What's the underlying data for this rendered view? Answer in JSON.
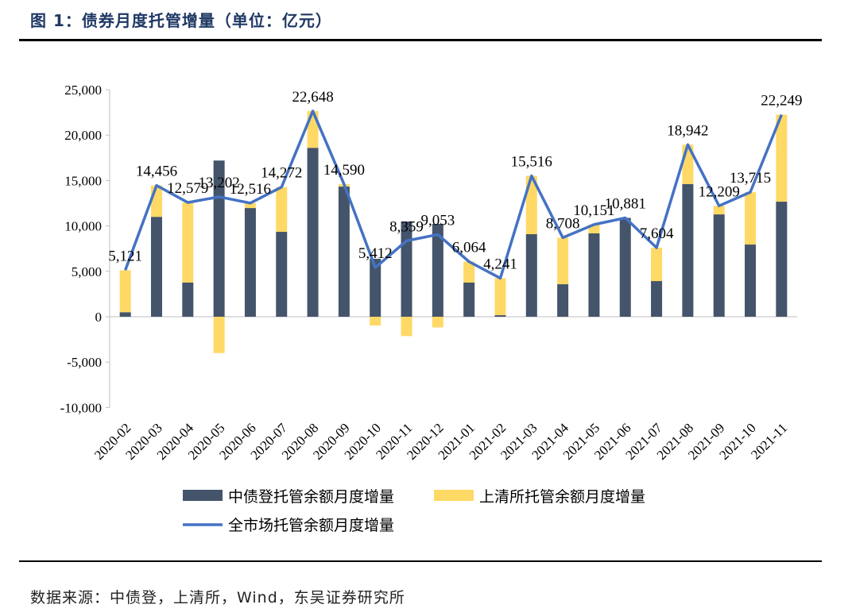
{
  "title": "图 1：债券月度托管增量（单位：亿元）",
  "source": "数据来源：中债登，上清所，Wind，东吴证券研究所",
  "chart_data": {
    "type": "bar",
    "stacked": true,
    "categories": [
      "2020-02",
      "2020-03",
      "2020-04",
      "2020-05",
      "2020-06",
      "2020-07",
      "2020-08",
      "2020-09",
      "2020-10",
      "2020-11",
      "2020-12",
      "2021-01",
      "2021-02",
      "2021-03",
      "2021-04",
      "2021-05",
      "2021-06",
      "2021-07",
      "2021-08",
      "2021-09",
      "2021-10",
      "2021-11"
    ],
    "ylim": [
      -10000,
      25000
    ],
    "yticks": [
      -10000,
      -5000,
      0,
      5000,
      10000,
      15000,
      20000,
      25000
    ],
    "ytick_labels": [
      "-10,000",
      "-5,000",
      "0",
      "5,000",
      "10,000",
      "15,000",
      "20,000",
      "25,000"
    ],
    "grid": false,
    "legend_position": "bottom",
    "series": [
      {
        "name": "中债登托管余额月度增量",
        "type": "bar",
        "color": "#44546a",
        "values": [
          500,
          11000,
          3760,
          17200,
          11970,
          9350,
          18600,
          14330,
          6380,
          10490,
          10230,
          3760,
          170,
          9090,
          3580,
          9180,
          10881,
          3930,
          14600,
          11270,
          7950,
          12670
        ]
      },
      {
        "name": "上清所托管余额月度增量",
        "type": "bar",
        "color": "#ffd966",
        "values": [
          4621,
          3456,
          8819,
          -3998,
          546,
          4922,
          4048,
          260,
          -968,
          -2131,
          -1177,
          2304,
          4071,
          6426,
          5128,
          971,
          0,
          3674,
          4342,
          939,
          5765,
          9579
        ]
      },
      {
        "name": "全市场托管余额月度增量",
        "type": "line",
        "color": "#4472c4",
        "values": [
          5121,
          14456,
          12579,
          13202,
          12516,
          14272,
          22648,
          14590,
          5412,
          8359,
          9053,
          6064,
          4241,
          15516,
          8708,
          10151,
          10881,
          7604,
          18942,
          12209,
          13715,
          22249
        ],
        "labels": [
          "5,121",
          "14,456",
          "12,579",
          "13,202",
          "12,516",
          "14,272",
          "22,648",
          "14,590",
          "5,412",
          "8,359",
          "9,053",
          "6,064",
          "4,241",
          "15,516",
          "8,708",
          "10,151",
          "10,881",
          "7,604",
          "18,942",
          "12,209",
          "13,715",
          "22,249"
        ]
      }
    ]
  }
}
